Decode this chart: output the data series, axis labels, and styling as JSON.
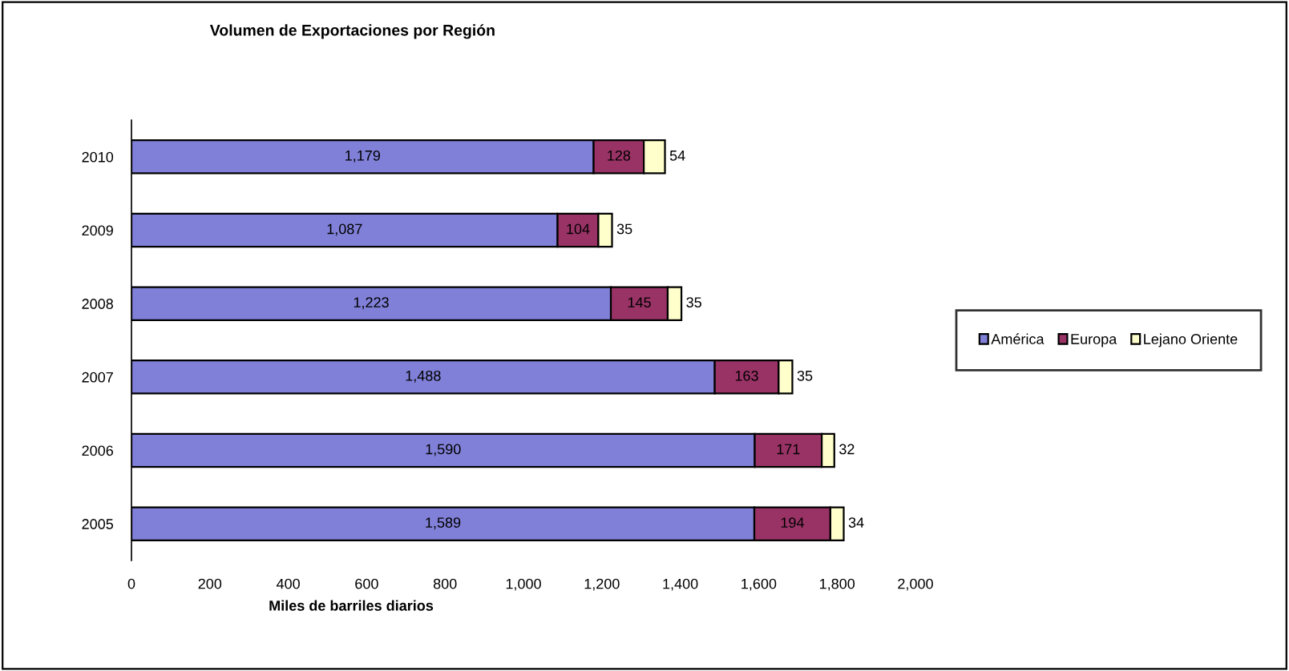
{
  "chart_data": {
    "type": "bar",
    "orientation": "horizontal",
    "stacked": true,
    "title": "Volumen de Exportaciones por Región",
    "xlabel": "Miles de barriles diarios",
    "categories": [
      "2010",
      "2009",
      "2008",
      "2007",
      "2006",
      "2005"
    ],
    "series": [
      {
        "name": "América",
        "color": "#8080d8",
        "values": [
          1179,
          1087,
          1223,
          1488,
          1590,
          1589
        ],
        "value_labels": [
          "1,179",
          "1,087",
          "1,223",
          "1,488",
          "1,590",
          "1,589"
        ]
      },
      {
        "name": "Europa",
        "color": "#993366",
        "values": [
          128,
          104,
          145,
          163,
          171,
          194
        ],
        "value_labels": [
          "128",
          "104",
          "145",
          "163",
          "171",
          "194"
        ]
      },
      {
        "name": "Lejano Oriente",
        "color": "#ffffcc",
        "values": [
          54,
          35,
          35,
          35,
          32,
          34
        ],
        "value_labels": [
          "54",
          "35",
          "35",
          "35",
          "32",
          "34"
        ]
      }
    ],
    "xlim": [
      0,
      2000
    ],
    "xticks": [
      {
        "value": 0,
        "label": "0"
      },
      {
        "value": 200,
        "label": "200"
      },
      {
        "value": 400,
        "label": "400"
      },
      {
        "value": 600,
        "label": "600"
      },
      {
        "value": 800,
        "label": "800"
      },
      {
        "value": 1000,
        "label": "1,000"
      },
      {
        "value": 1200,
        "label": "1,200"
      },
      {
        "value": 1400,
        "label": "1,400"
      },
      {
        "value": 1600,
        "label": "1,600"
      },
      {
        "value": 1800,
        "label": "1,800"
      },
      {
        "value": 2000,
        "label": "2,000"
      }
    ],
    "grid": false,
    "legend": "right"
  }
}
